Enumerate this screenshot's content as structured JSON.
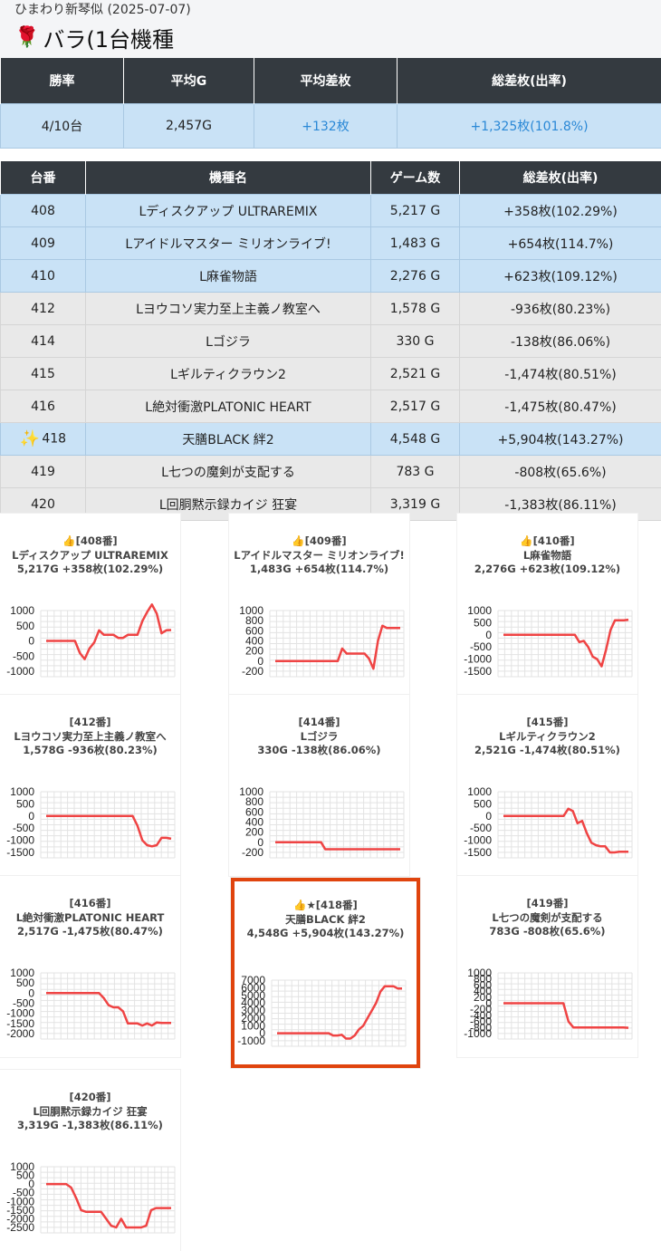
{
  "page": {
    "subtitle": "ひまわり新琴似 (2025-07-07)",
    "title_icon": "rose-icon",
    "title": "バラ(1台機種"
  },
  "summary": {
    "headers": [
      "勝率",
      "平均G",
      "平均差枚",
      "総差枚(出率)"
    ],
    "values": [
      "4/10台",
      "2,457G",
      "+132枚",
      "+1,325枚(101.8%)"
    ]
  },
  "machine_table": {
    "headers": [
      "台番",
      "機種名",
      "ゲーム数",
      "総差枚(出率)"
    ],
    "rows": [
      {
        "no": "408",
        "name": "Lディスクアップ ULTRAREMIX",
        "games": "5,217 G",
        "diff": "+358枚(102.29%)",
        "status": "win",
        "featured": false
      },
      {
        "no": "409",
        "name": "Lアイドルマスター ミリオンライブ!",
        "games": "1,483 G",
        "diff": "+654枚(114.7%)",
        "status": "win",
        "featured": false
      },
      {
        "no": "410",
        "name": "L麻雀物語",
        "games": "2,276 G",
        "diff": "+623枚(109.12%)",
        "status": "win",
        "featured": false
      },
      {
        "no": "412",
        "name": "Lヨウコソ実力至上主義ノ教室へ",
        "games": "1,578 G",
        "diff": "-936枚(80.23%)",
        "status": "lose",
        "featured": false
      },
      {
        "no": "414",
        "name": "Lゴジラ",
        "games": "330 G",
        "diff": "-138枚(86.06%)",
        "status": "lose",
        "featured": false
      },
      {
        "no": "415",
        "name": "Lギルティクラウン2",
        "games": "2,521 G",
        "diff": "-1,474枚(80.51%)",
        "status": "lose",
        "featured": false
      },
      {
        "no": "416",
        "name": "L絶対衝激PLATONIC HEART",
        "games": "2,517 G",
        "diff": "-1,475枚(80.47%)",
        "status": "lose",
        "featured": false
      },
      {
        "no": "418",
        "name": "天膳BLACK 絆2",
        "games": "4,548 G",
        "diff": "+5,904枚(143.27%)",
        "status": "win",
        "featured": true
      },
      {
        "no": "419",
        "name": "L七つの魔剣が支配する",
        "games": "783 G",
        "diff": "-808枚(65.6%)",
        "status": "lose",
        "featured": false
      },
      {
        "no": "420",
        "name": "L回胴黙示録カイジ 狂宴",
        "games": "3,319 G",
        "diff": "-1,383枚(86.11%)",
        "status": "lose",
        "featured": false
      }
    ]
  },
  "chart_data": [
    {
      "type": "line",
      "label": "👍[408番]",
      "name": "Lディスクアップ ULTRAREMIX",
      "stats": "5,217G +358枚(102.29%)",
      "color": "#ef4444",
      "yticks": [
        1000,
        500,
        0,
        -500,
        -1000
      ],
      "ylim": [
        -1000,
        1200
      ],
      "values": [
        0,
        0,
        0,
        0,
        0,
        0,
        0,
        -400,
        -600,
        -250,
        -50,
        350,
        200,
        200,
        200,
        100,
        100,
        200,
        200,
        200,
        650,
        950,
        1200,
        900,
        250,
        350,
        358
      ]
    },
    {
      "type": "line",
      "label": "👍[409番]",
      "name": "Lアイドルマスター ミリオンライブ!",
      "stats": "1,483G +654枚(114.7%)",
      "color": "#ef4444",
      "yticks": [
        1000,
        800,
        600,
        400,
        200,
        0,
        -200
      ],
      "ylim": [
        -200,
        1000
      ],
      "values": [
        0,
        0,
        0,
        0,
        0,
        0,
        0,
        0,
        0,
        0,
        0,
        0,
        0,
        0,
        0,
        250,
        150,
        150,
        150,
        150,
        150,
        50,
        -150,
        400,
        700,
        654,
        654,
        654,
        654
      ]
    },
    {
      "type": "line",
      "label": "👍[410番]",
      "name": "L麻雀物語",
      "stats": "2,276G +623枚(109.12%)",
      "color": "#ef4444",
      "yticks": [
        1000,
        500,
        0,
        -500,
        -1000,
        -1500
      ],
      "ylim": [
        -1500,
        1000
      ],
      "values": [
        0,
        0,
        0,
        0,
        0,
        0,
        0,
        0,
        0,
        0,
        0,
        0,
        0,
        0,
        0,
        0,
        0,
        -300,
        -250,
        -500,
        -900,
        -1000,
        -1300,
        -600,
        200,
        600,
        600,
        600,
        623
      ]
    },
    {
      "type": "line",
      "label": "[412番]",
      "name": "Lヨウコソ実力至上主義ノ教室へ",
      "stats": "1,578G -936枚(80.23%)",
      "color": "#ef4444",
      "yticks": [
        1000,
        500,
        0,
        -500,
        -1000,
        -1500
      ],
      "ylim": [
        -1500,
        1000
      ],
      "values": [
        0,
        0,
        0,
        0,
        0,
        0,
        0,
        0,
        0,
        0,
        0,
        0,
        0,
        0,
        0,
        0,
        0,
        0,
        0,
        -400,
        -1000,
        -1200,
        -1250,
        -1200,
        -900,
        -900,
        -936
      ]
    },
    {
      "type": "line",
      "label": "[414番]",
      "name": "Lゴジラ",
      "stats": "330G -138枚(86.06%)",
      "color": "#ef4444",
      "yticks": [
        1000,
        800,
        600,
        400,
        200,
        0,
        -200
      ],
      "ylim": [
        -200,
        1000
      ],
      "values": [
        0,
        0,
        0,
        0,
        0,
        0,
        0,
        0,
        0,
        0,
        0,
        0,
        -138,
        -138,
        -138,
        -138,
        -138,
        -138,
        -138,
        -138,
        -138,
        -138,
        -138,
        -138,
        -138,
        -138,
        -138,
        -138,
        -138,
        -138,
        -138
      ]
    },
    {
      "type": "line",
      "label": "[415番]",
      "name": "Lギルティクラウン2",
      "stats": "2,521G -1,474枚(80.51%)",
      "color": "#ef4444",
      "yticks": [
        1000,
        500,
        0,
        -500,
        -1000,
        -1500
      ],
      "ylim": [
        -1500,
        1000
      ],
      "values": [
        0,
        0,
        0,
        0,
        0,
        0,
        0,
        0,
        0,
        0,
        0,
        0,
        0,
        0,
        300,
        200,
        -300,
        -200,
        -700,
        -1100,
        -1200,
        -1250,
        -1250,
        -1500,
        -1500,
        -1474,
        -1474,
        -1474
      ]
    },
    {
      "type": "line",
      "label": "[416番]",
      "name": "L絶対衝激PLATONIC HEART",
      "stats": "2,517G -1,475枚(80.47%)",
      "color": "#ef4444",
      "yticks": [
        1000,
        500,
        0,
        -500,
        -1000,
        -1500,
        -2000
      ],
      "ylim": [
        -2000,
        1000
      ],
      "values": [
        0,
        0,
        0,
        0,
        0,
        0,
        0,
        0,
        0,
        0,
        0,
        0,
        -250,
        -600,
        -700,
        -700,
        -900,
        -1500,
        -1500,
        -1500,
        -1600,
        -1500,
        -1600,
        -1450,
        -1475,
        -1475,
        -1475
      ]
    },
    {
      "type": "line",
      "label": "👍★[418番]",
      "name": "天膳BLACK 絆2",
      "stats": "4,548G +5,904枚(143.27%)",
      "color": "#ef4444",
      "yticks": [
        7000,
        6000,
        5000,
        4000,
        3000,
        2000,
        1000,
        0,
        -1000
      ],
      "ylim": [
        -1000,
        7000
      ],
      "values": [
        0,
        0,
        0,
        0,
        0,
        0,
        0,
        0,
        0,
        0,
        0,
        0,
        0,
        -300,
        -300,
        -200,
        -700,
        -700,
        -300,
        500,
        1000,
        2000,
        3000,
        4000,
        5500,
        6200,
        6200,
        6200,
        5900,
        5904
      ]
    },
    {
      "type": "line",
      "label": "[419番]",
      "name": "L七つの魔剣が支配する",
      "stats": "783G -808枚(65.6%)",
      "color": "#ef4444",
      "yticks": [
        1000,
        800,
        600,
        400,
        200,
        0,
        -200,
        -400,
        -600,
        -800,
        -1000
      ],
      "ylim": [
        -1000,
        1000
      ],
      "values": [
        0,
        0,
        0,
        0,
        0,
        0,
        0,
        0,
        0,
        0,
        0,
        0,
        0,
        -600,
        -800,
        -800,
        -800,
        -800,
        -800,
        -800,
        -800,
        -800,
        -800,
        -800,
        -800,
        -808
      ]
    },
    {
      "type": "line",
      "label": "[420番]",
      "name": "L回胴黙示録カイジ 狂宴",
      "stats": "3,319G -1,383枚(86.11%)",
      "color": "#ef4444",
      "yticks": [
        1000,
        500,
        0,
        -500,
        -1000,
        -1500,
        -2000,
        -2500
      ],
      "ylim": [
        -2500,
        1000
      ],
      "values": [
        0,
        0,
        0,
        0,
        0,
        -200,
        -800,
        -1500,
        -1600,
        -1600,
        -1600,
        -1600,
        -2000,
        -2400,
        -2500,
        -2000,
        -2500,
        -2500,
        -2500,
        -2500,
        -2400,
        -1500,
        -1383,
        -1383,
        -1383,
        -1383
      ]
    }
  ]
}
